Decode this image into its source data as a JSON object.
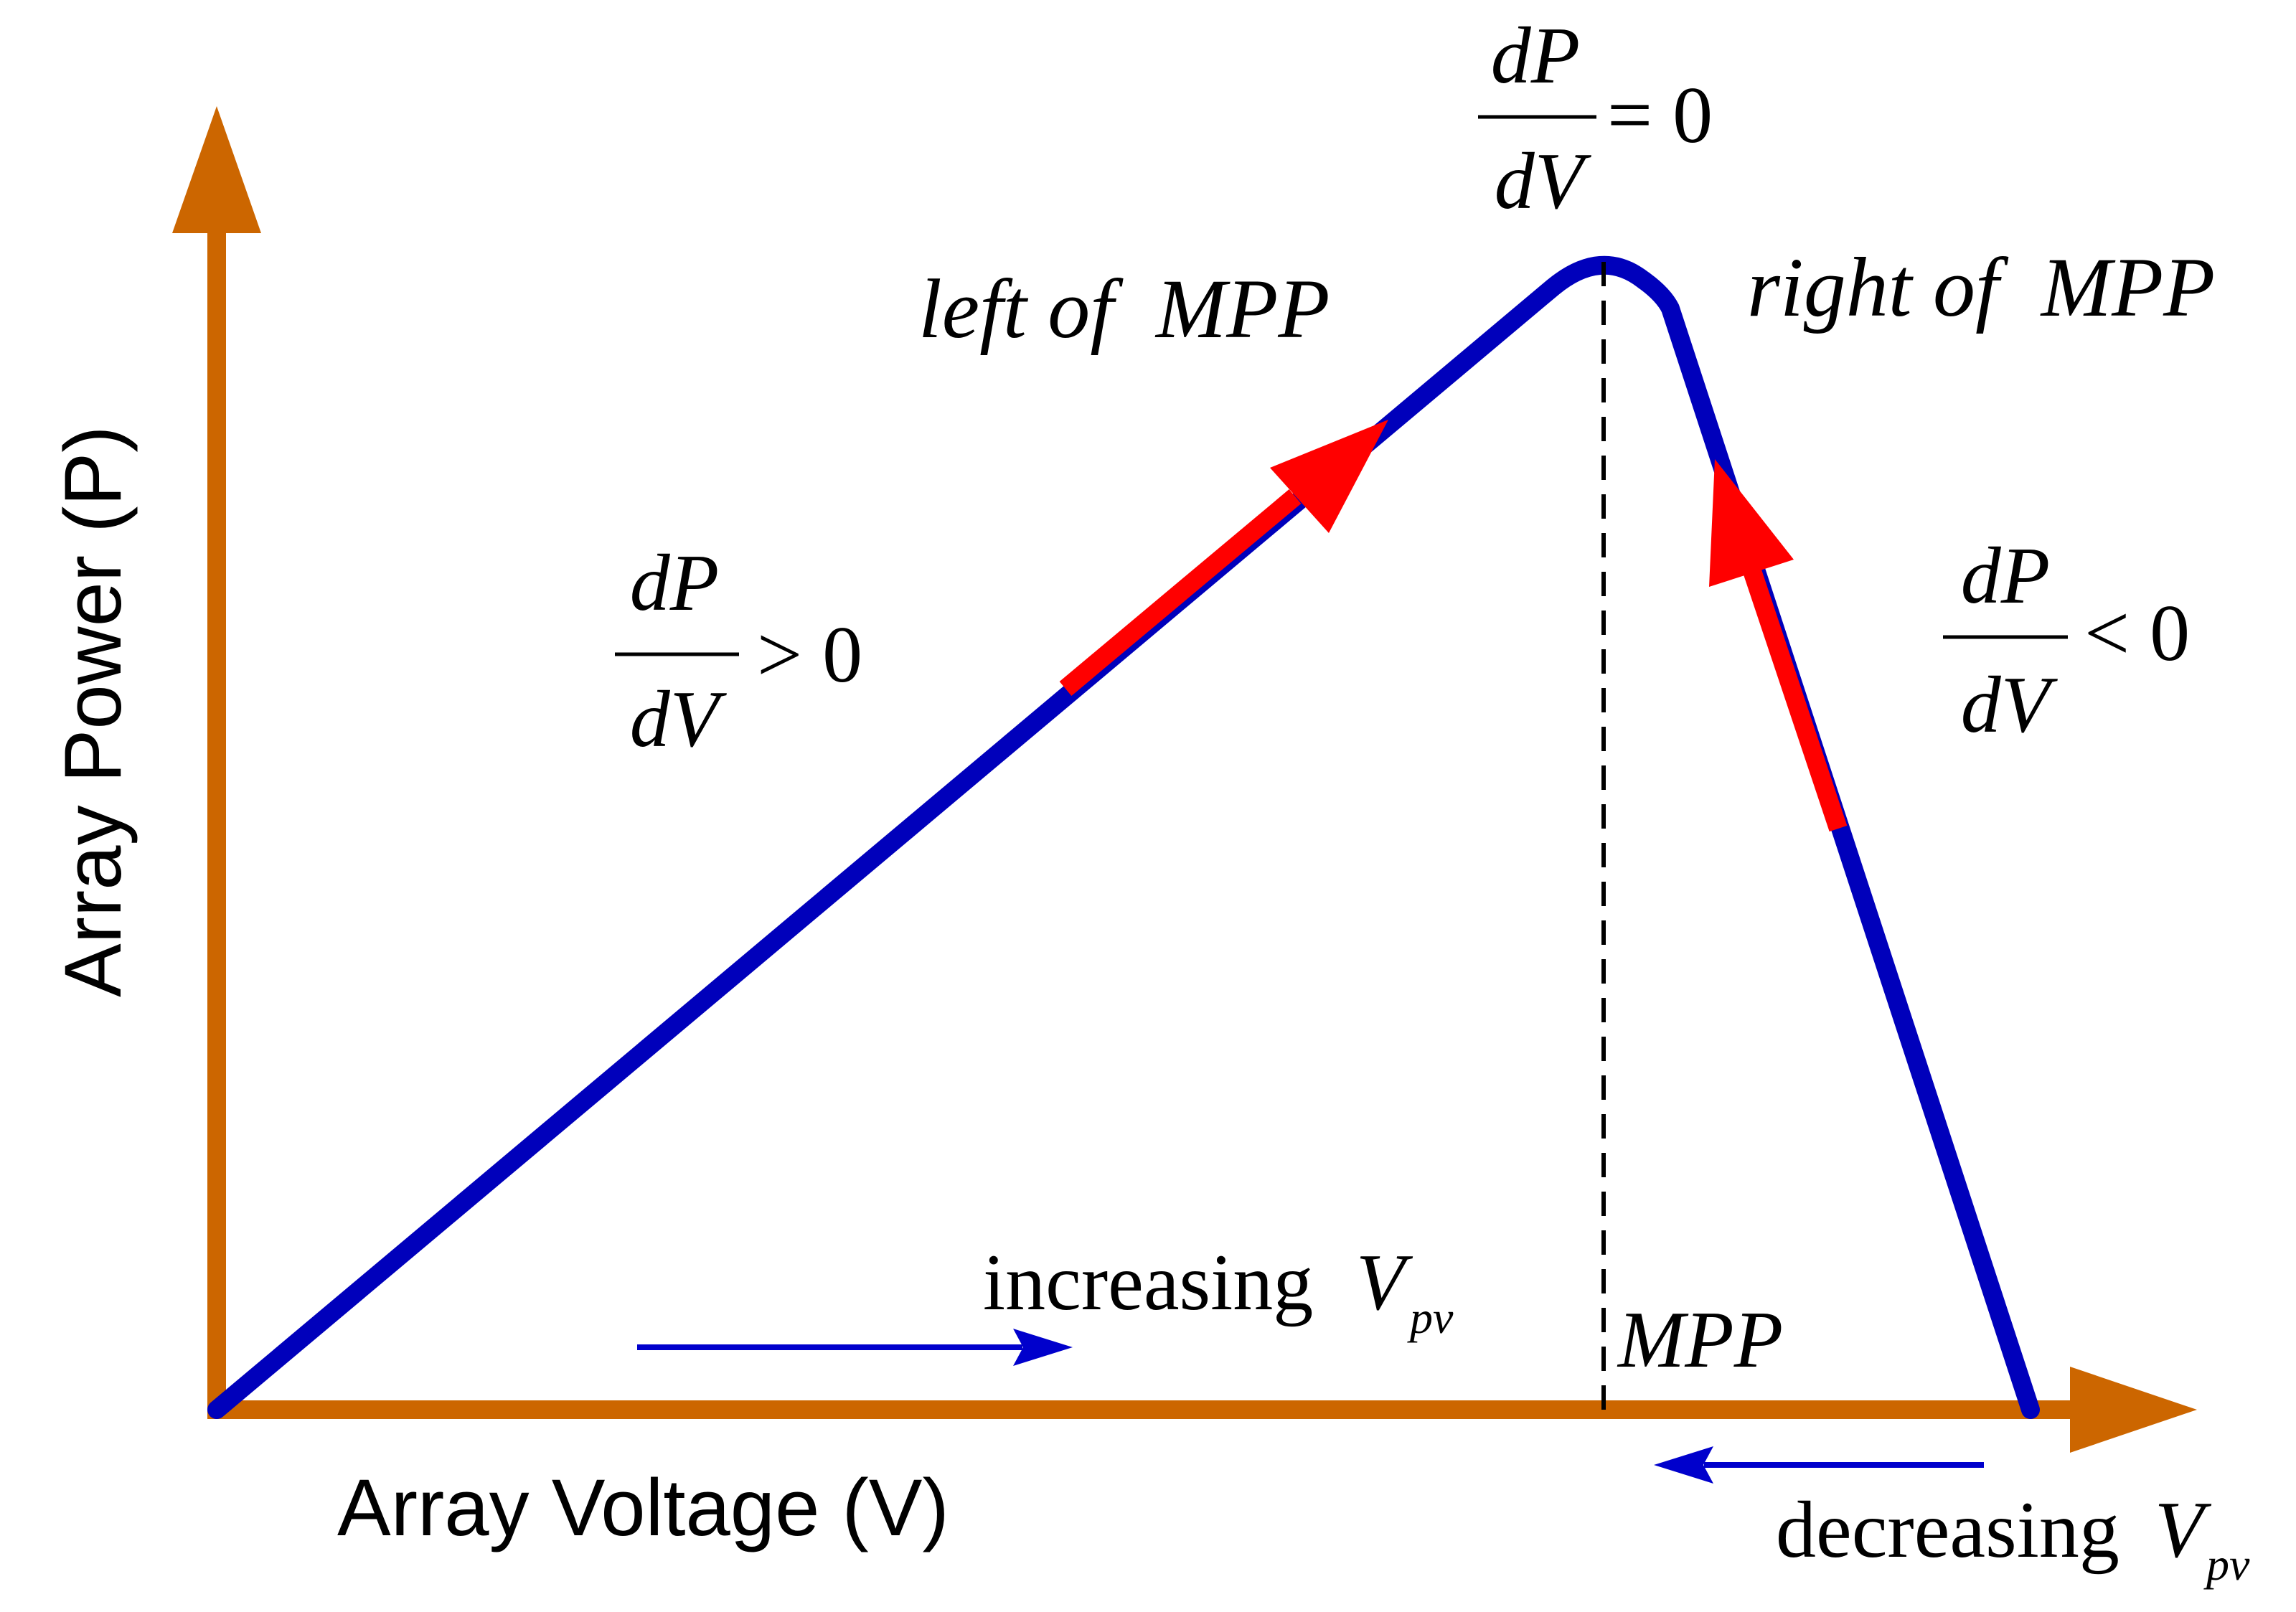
{
  "axes": {
    "y_label": "Array Power (P)",
    "x_label": "Array Voltage (V)"
  },
  "region_labels": {
    "left": "left of  MPP",
    "right": "right of  MPP"
  },
  "equations": {
    "peak": {
      "numerator": "dP",
      "denominator": "dV",
      "relation": "= 0"
    },
    "left": {
      "numerator": "dP",
      "denominator": "dV",
      "relation": "> 0"
    },
    "right": {
      "numerator": "dP",
      "denominator": "dV",
      "relation": "< 0"
    }
  },
  "mpp_label": "MPP",
  "increasing": {
    "word": "increasing",
    "symbol": "V",
    "subscript": "pv"
  },
  "decreasing": {
    "word": "decreasing",
    "symbol": "V",
    "subscript": "pv"
  },
  "colors": {
    "axis": "#cc6600",
    "curve": "#0000bb",
    "highlight": "#ff0000",
    "direction_arrow": "#0000cc",
    "text": "#000000"
  }
}
